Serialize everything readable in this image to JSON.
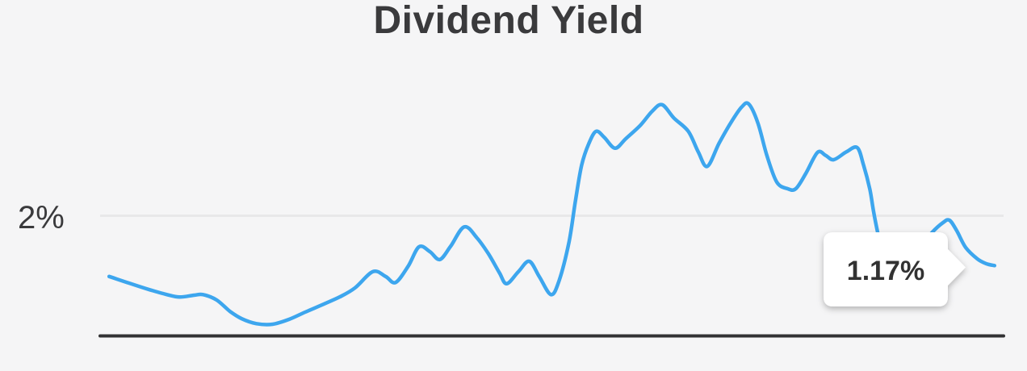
{
  "chart_data": {
    "type": "line",
    "title": "Dividend Yield",
    "xlabel": "",
    "ylabel": "",
    "y_axis": {
      "unit": "%",
      "min": 0,
      "max_visible": 4.4,
      "tick_values": [
        2
      ],
      "tick_labels": [
        "2%"
      ]
    },
    "x_axis": {
      "tick_labels": []
    },
    "grid": {
      "horizontal_lines_at_values": [
        2
      ]
    },
    "legend": {
      "visible": false
    },
    "series": [
      {
        "name": "Dividend Yield",
        "unit": "%",
        "points": [
          [
            0.01,
            0.99
          ],
          [
            0.032,
            0.88
          ],
          [
            0.055,
            0.77
          ],
          [
            0.074,
            0.69
          ],
          [
            0.088,
            0.65
          ],
          [
            0.104,
            0.68
          ],
          [
            0.114,
            0.69
          ],
          [
            0.129,
            0.6
          ],
          [
            0.144,
            0.41
          ],
          [
            0.157,
            0.29
          ],
          [
            0.173,
            0.21
          ],
          [
            0.191,
            0.2
          ],
          [
            0.209,
            0.28
          ],
          [
            0.227,
            0.4
          ],
          [
            0.247,
            0.53
          ],
          [
            0.265,
            0.65
          ],
          [
            0.282,
            0.8
          ],
          [
            0.302,
            1.07
          ],
          [
            0.316,
            0.99
          ],
          [
            0.327,
            0.89
          ],
          [
            0.341,
            1.16
          ],
          [
            0.353,
            1.48
          ],
          [
            0.365,
            1.4
          ],
          [
            0.376,
            1.27
          ],
          [
            0.388,
            1.49
          ],
          [
            0.403,
            1.81
          ],
          [
            0.417,
            1.63
          ],
          [
            0.43,
            1.36
          ],
          [
            0.442,
            1.05
          ],
          [
            0.45,
            0.87
          ],
          [
            0.463,
            1.07
          ],
          [
            0.475,
            1.24
          ],
          [
            0.486,
            0.99
          ],
          [
            0.499,
            0.69
          ],
          [
            0.508,
            0.92
          ],
          [
            0.519,
            1.56
          ],
          [
            0.526,
            2.23
          ],
          [
            0.533,
            2.83
          ],
          [
            0.541,
            3.19
          ],
          [
            0.549,
            3.39
          ],
          [
            0.558,
            3.29
          ],
          [
            0.57,
            3.11
          ],
          [
            0.582,
            3.27
          ],
          [
            0.598,
            3.49
          ],
          [
            0.611,
            3.72
          ],
          [
            0.622,
            3.83
          ],
          [
            0.635,
            3.61
          ],
          [
            0.651,
            3.39
          ],
          [
            0.662,
            3.05
          ],
          [
            0.672,
            2.81
          ],
          [
            0.685,
            3.19
          ],
          [
            0.698,
            3.53
          ],
          [
            0.71,
            3.79
          ],
          [
            0.718,
            3.84
          ],
          [
            0.728,
            3.53
          ],
          [
            0.738,
            2.99
          ],
          [
            0.749,
            2.55
          ],
          [
            0.761,
            2.44
          ],
          [
            0.77,
            2.44
          ],
          [
            0.781,
            2.69
          ],
          [
            0.794,
            3.04
          ],
          [
            0.803,
            2.99
          ],
          [
            0.812,
            2.92
          ],
          [
            0.826,
            3.05
          ],
          [
            0.838,
            3.12
          ],
          [
            0.845,
            2.83
          ],
          [
            0.852,
            2.43
          ],
          [
            0.856,
            2.07
          ],
          [
            0.861,
            1.69
          ],
          [
            0.866,
            1.36
          ],
          [
            0.872,
            1.2
          ],
          [
            0.881,
            1.16
          ],
          [
            0.895,
            1.27
          ],
          [
            0.908,
            1.48
          ],
          [
            0.921,
            1.72
          ],
          [
            0.933,
            1.88
          ],
          [
            0.94,
            1.92
          ],
          [
            0.948,
            1.75
          ],
          [
            0.958,
            1.47
          ],
          [
            0.971,
            1.28
          ],
          [
            0.981,
            1.2
          ],
          [
            0.99,
            1.17
          ]
        ]
      }
    ],
    "annotations": [
      {
        "type": "callout-tooltip",
        "text": "1.17%",
        "attached_to": "last-point"
      }
    ]
  },
  "colors": {
    "background": "#f5f5f6",
    "line": "#3da6ee",
    "axis_line": "#323234",
    "gridline": "#e8e8e9",
    "heading_text": "#3a3a3c",
    "tooltip_background": "#ffffff",
    "tooltip_text": "#333333"
  }
}
